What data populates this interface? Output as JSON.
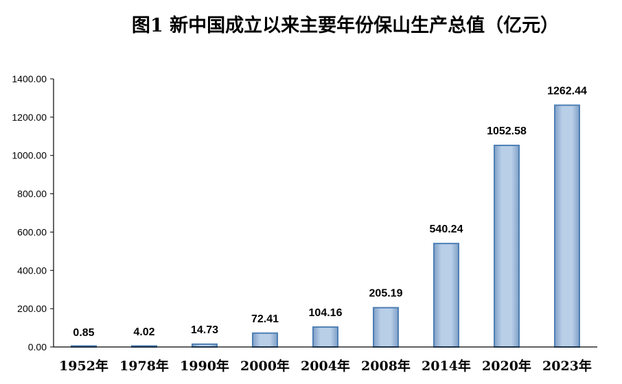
{
  "chart_data": {
    "type": "bar",
    "title": "图1  新中国成立以来主要年份保山生产总值（亿元）",
    "categories": [
      "1952年",
      "1978年",
      "1990年",
      "2000年",
      "2004年",
      "2008年",
      "2014年",
      "2020年",
      "2023年"
    ],
    "values": [
      0.85,
      4.02,
      14.73,
      72.41,
      104.16,
      205.19,
      540.24,
      1052.58,
      1262.44
    ],
    "data_labels": [
      "0.85",
      "4.02",
      "14.73",
      "72.41",
      "104.16",
      "205.19",
      "540.24",
      "1052.58",
      "1262.44"
    ],
    "y_ticks": [
      "0.00",
      "200.00",
      "400.00",
      "600.00",
      "800.00",
      "1000.00",
      "1200.00",
      "1400.00"
    ],
    "ylim": [
      0,
      1400
    ],
    "xlabel": "",
    "ylabel": "",
    "grid": false,
    "legend": "none",
    "colors": {
      "bar_fill": "#b7cde6",
      "bar_edge": "#4e7fb5",
      "axis": "#000000"
    }
  }
}
